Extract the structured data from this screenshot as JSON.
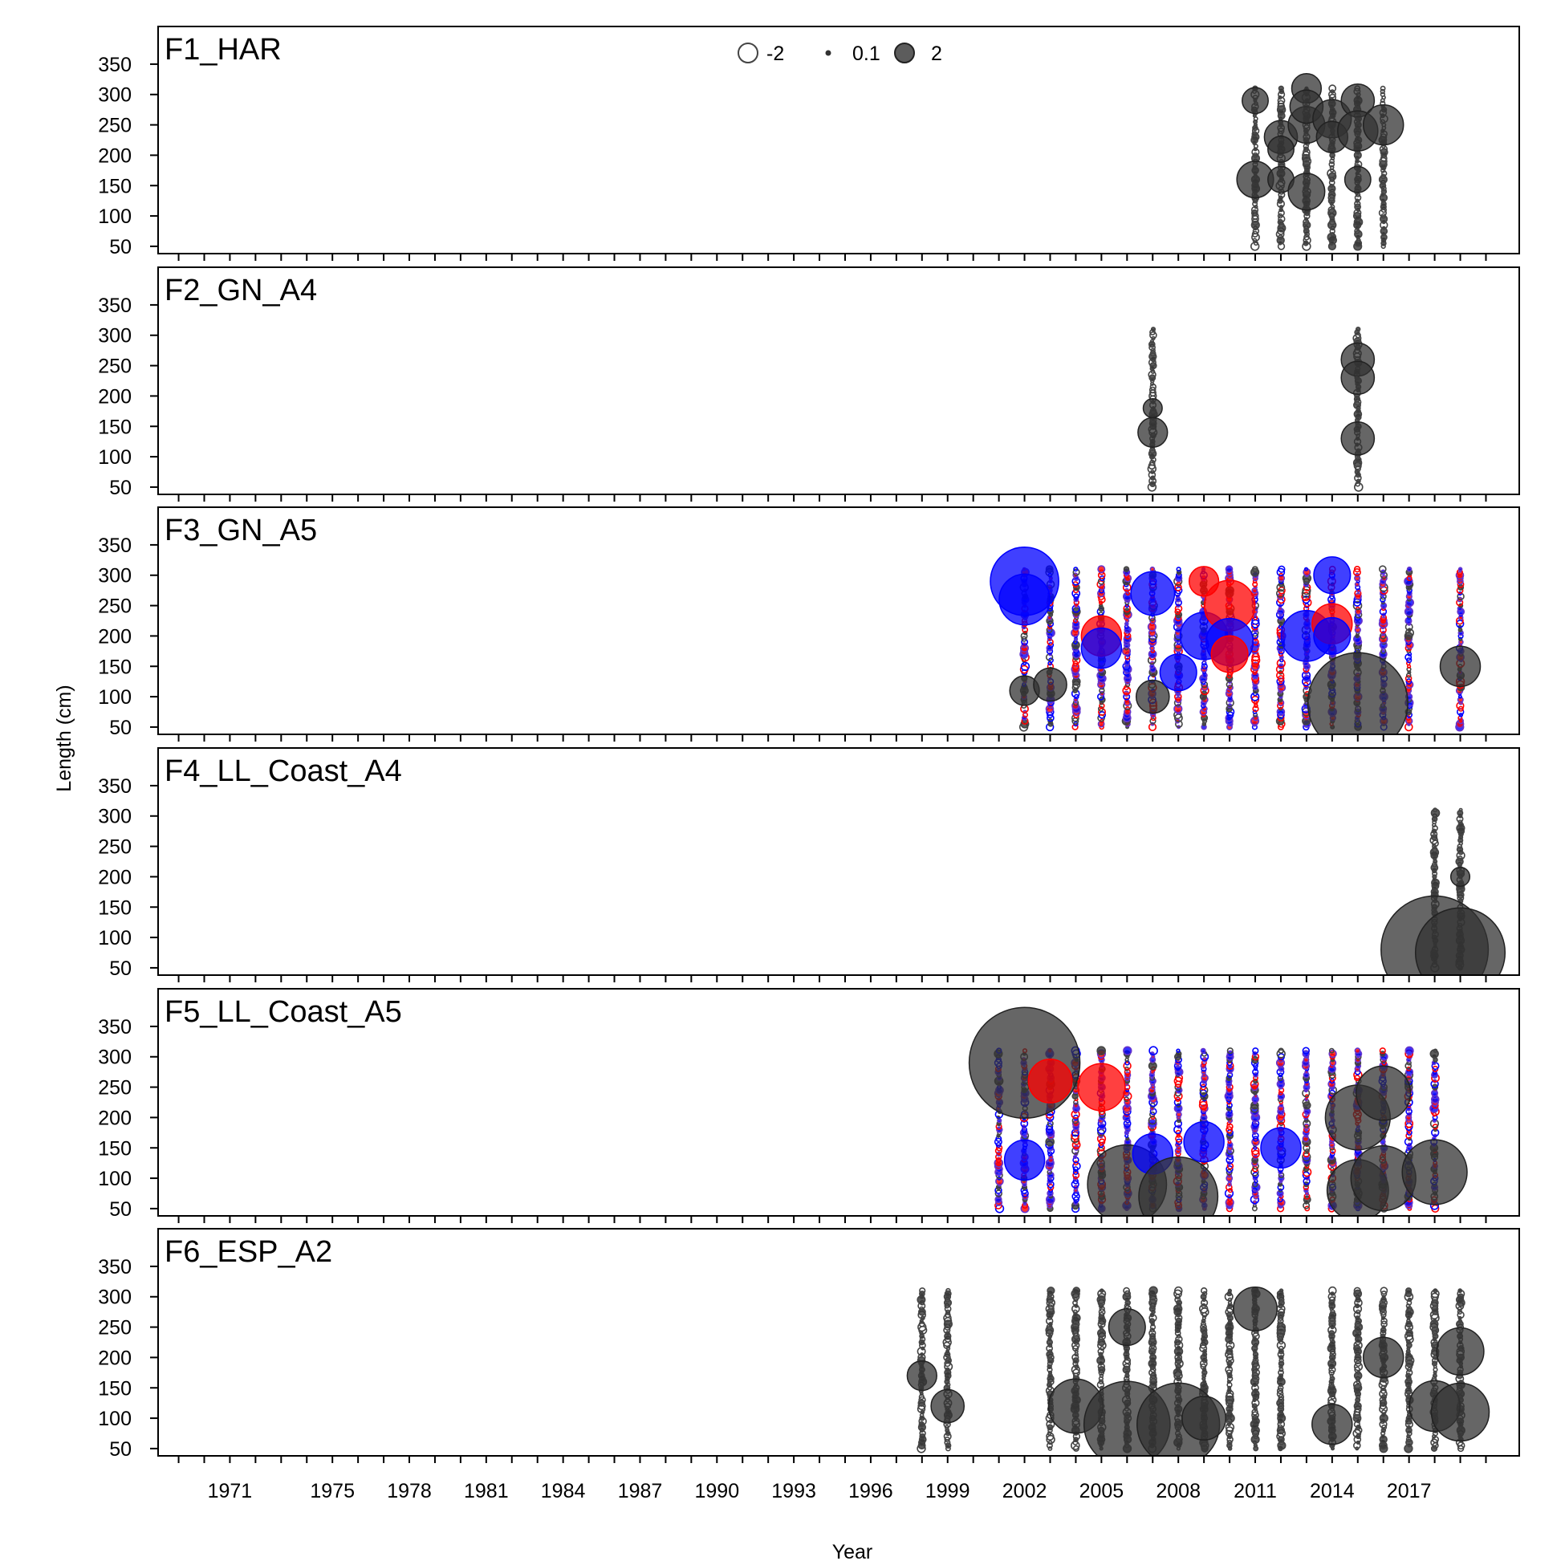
{
  "chart_data": {
    "type": "scatter",
    "subtype": "bubble-residuals",
    "xlabel": "Year",
    "ylabel": "Length (cm)",
    "x_tick_labels": [
      "1971",
      "1975",
      "1978",
      "1981",
      "1984",
      "1987",
      "1990",
      "1993",
      "1996",
      "1999",
      "2002",
      "2005",
      "2008",
      "2011",
      "2014",
      "2017"
    ],
    "x_tick_values": [
      1971,
      1975,
      1978,
      1981,
      1984,
      1987,
      1990,
      1993,
      1996,
      1999,
      2002,
      2005,
      2008,
      2011,
      2014,
      2017
    ],
    "xlim": [
      1968.2,
      2021.3
    ],
    "y_ticks": [
      50,
      100,
      150,
      200,
      250,
      300,
      350
    ],
    "ylim": [
      38,
      412
    ],
    "legend": {
      "placement": "top-center",
      "entries": [
        {
          "label": "-2",
          "value": -2
        },
        {
          "label": "0.1",
          "value": 0.1
        },
        {
          "label": "2",
          "value": 2
        }
      ]
    },
    "colors": {
      "positive": "#333333",
      "negative_outline": "#444444",
      "red": "#ff0000",
      "blue": "#0000ff",
      "purple": "#6633cc"
    },
    "panels": [
      {
        "label": "F1_HAR",
        "years": [
          2011,
          2012,
          2013,
          2014,
          2015,
          2016
        ],
        "big_bubbles": [
          {
            "year": 2011,
            "length": 160,
            "value": 1.8
          },
          {
            "year": 2011,
            "length": 290,
            "value": 1.2
          },
          {
            "year": 2012,
            "length": 230,
            "value": 1.6
          },
          {
            "year": 2012,
            "length": 160,
            "value": 1.2
          },
          {
            "year": 2012,
            "length": 210,
            "value": 1.2
          },
          {
            "year": 2013,
            "length": 310,
            "value": 1.4
          },
          {
            "year": 2013,
            "length": 250,
            "value": 1.8
          },
          {
            "year": 2013,
            "length": 280,
            "value": 1.6
          },
          {
            "year": 2013,
            "length": 140,
            "value": 1.8
          },
          {
            "year": 2014,
            "length": 260,
            "value": 1.9
          },
          {
            "year": 2014,
            "length": 230,
            "value": 1.5
          },
          {
            "year": 2015,
            "length": 290,
            "value": 1.6
          },
          {
            "year": 2015,
            "length": 240,
            "value": 2.0
          },
          {
            "year": 2015,
            "length": 160,
            "value": 1.2
          },
          {
            "year": 2016,
            "length": 250,
            "value": 2.0
          }
        ]
      },
      {
        "label": "F2_GN_A4",
        "years": [
          2007,
          2015
        ],
        "big_bubbles": [
          {
            "year": 2007,
            "length": 140,
            "value": 1.4
          },
          {
            "year": 2007,
            "length": 180,
            "value": 0.8
          },
          {
            "year": 2015,
            "length": 260,
            "value": 1.6
          },
          {
            "year": 2015,
            "length": 230,
            "value": 1.6
          },
          {
            "year": 2015,
            "length": 130,
            "value": 1.6
          }
        ]
      },
      {
        "label": "F3_GN_A5",
        "years": [
          2002,
          2003,
          2004,
          2005,
          2006,
          2007,
          2008,
          2009,
          2010,
          2011,
          2012,
          2013,
          2014,
          2015,
          2016,
          2017,
          2019
        ],
        "big_bubbles": [
          {
            "year": 2002,
            "length": 290,
            "value": 3.6,
            "color": "blue"
          },
          {
            "year": 2002,
            "length": 260,
            "value": 2.6,
            "color": "blue"
          },
          {
            "year": 2002,
            "length": 110,
            "value": 1.4
          },
          {
            "year": 2003,
            "length": 120,
            "value": 1.6
          },
          {
            "year": 2005,
            "length": 200,
            "value": 2.0,
            "color": "red"
          },
          {
            "year": 2005,
            "length": 180,
            "value": 2.0,
            "color": "blue"
          },
          {
            "year": 2007,
            "length": 270,
            "value": 2.2,
            "color": "blue"
          },
          {
            "year": 2007,
            "length": 100,
            "value": 1.6
          },
          {
            "year": 2008,
            "length": 140,
            "value": 1.8,
            "color": "blue"
          },
          {
            "year": 2009,
            "length": 200,
            "value": 2.4,
            "color": "blue"
          },
          {
            "year": 2009,
            "length": 290,
            "value": 1.4,
            "color": "red"
          },
          {
            "year": 2010,
            "length": 250,
            "value": 2.6,
            "color": "red"
          },
          {
            "year": 2010,
            "length": 190,
            "value": 2.4,
            "color": "blue"
          },
          {
            "year": 2010,
            "length": 170,
            "value": 1.8,
            "color": "red"
          },
          {
            "year": 2013,
            "length": 200,
            "value": 2.6,
            "color": "blue"
          },
          {
            "year": 2014,
            "length": 300,
            "value": 1.8,
            "color": "blue"
          },
          {
            "year": 2014,
            "length": 220,
            "value": 2.0,
            "color": "red"
          },
          {
            "year": 2014,
            "length": 200,
            "value": 1.8,
            "color": "blue"
          },
          {
            "year": 2015,
            "length": 90,
            "value": 5.4
          },
          {
            "year": 2019,
            "length": 150,
            "value": 2.0
          }
        ]
      },
      {
        "label": "F4_LL_Coast_A4",
        "years": [
          2018,
          2019
        ],
        "big_bubbles": [
          {
            "year": 2018,
            "length": 80,
            "value": 5.8
          },
          {
            "year": 2019,
            "length": 75,
            "value": 4.8
          },
          {
            "year": 2019,
            "length": 200,
            "value": 0.8
          }
        ]
      },
      {
        "label": "F5_LL_Coast_A5",
        "years": [
          2001,
          2002,
          2003,
          2004,
          2005,
          2006,
          2007,
          2008,
          2009,
          2010,
          2011,
          2012,
          2013,
          2014,
          2015,
          2016,
          2017,
          2018
        ],
        "big_bubbles": [
          {
            "year": 2002,
            "length": 290,
            "value": 6.0
          },
          {
            "year": 2002,
            "length": 130,
            "value": 2.0,
            "color": "blue"
          },
          {
            "year": 2003,
            "length": 260,
            "value": 2.2,
            "color": "red"
          },
          {
            "year": 2005,
            "length": 250,
            "value": 2.4,
            "color": "red"
          },
          {
            "year": 2006,
            "length": 90,
            "value": 4.2
          },
          {
            "year": 2007,
            "length": 140,
            "value": 2.0,
            "color": "blue"
          },
          {
            "year": 2008,
            "length": 70,
            "value": 4.2
          },
          {
            "year": 2009,
            "length": 160,
            "value": 2.0,
            "color": "blue"
          },
          {
            "year": 2012,
            "length": 150,
            "value": 2.0,
            "color": "blue"
          },
          {
            "year": 2015,
            "length": 80,
            "value": 3.2
          },
          {
            "year": 2015,
            "length": 200,
            "value": 3.4
          },
          {
            "year": 2016,
            "length": 240,
            "value": 2.8
          },
          {
            "year": 2016,
            "length": 100,
            "value": 3.4
          },
          {
            "year": 2018,
            "length": 110,
            "value": 3.4
          }
        ]
      },
      {
        "label": "F6_ESP_A2",
        "years": [
          1998,
          1999,
          2003,
          2004,
          2005,
          2006,
          2007,
          2008,
          2009,
          2010,
          2011,
          2012,
          2014,
          2015,
          2016,
          2017,
          2018,
          2019
        ],
        "big_bubbles": [
          {
            "year": 1998,
            "length": 170,
            "value": 1.4
          },
          {
            "year": 1999,
            "length": 120,
            "value": 1.6
          },
          {
            "year": 2004,
            "length": 120,
            "value": 2.8
          },
          {
            "year": 2006,
            "length": 90,
            "value": 4.6
          },
          {
            "year": 2006,
            "length": 250,
            "value": 1.8
          },
          {
            "year": 2008,
            "length": 90,
            "value": 4.4
          },
          {
            "year": 2009,
            "length": 100,
            "value": 2.2
          },
          {
            "year": 2011,
            "length": 280,
            "value": 2.2
          },
          {
            "year": 2014,
            "length": 90,
            "value": 2.0
          },
          {
            "year": 2016,
            "length": 200,
            "value": 2.0
          },
          {
            "year": 2018,
            "length": 120,
            "value": 2.6
          },
          {
            "year": 2019,
            "length": 110,
            "value": 3.0
          },
          {
            "year": 2019,
            "length": 210,
            "value": 2.4
          }
        ]
      }
    ]
  }
}
